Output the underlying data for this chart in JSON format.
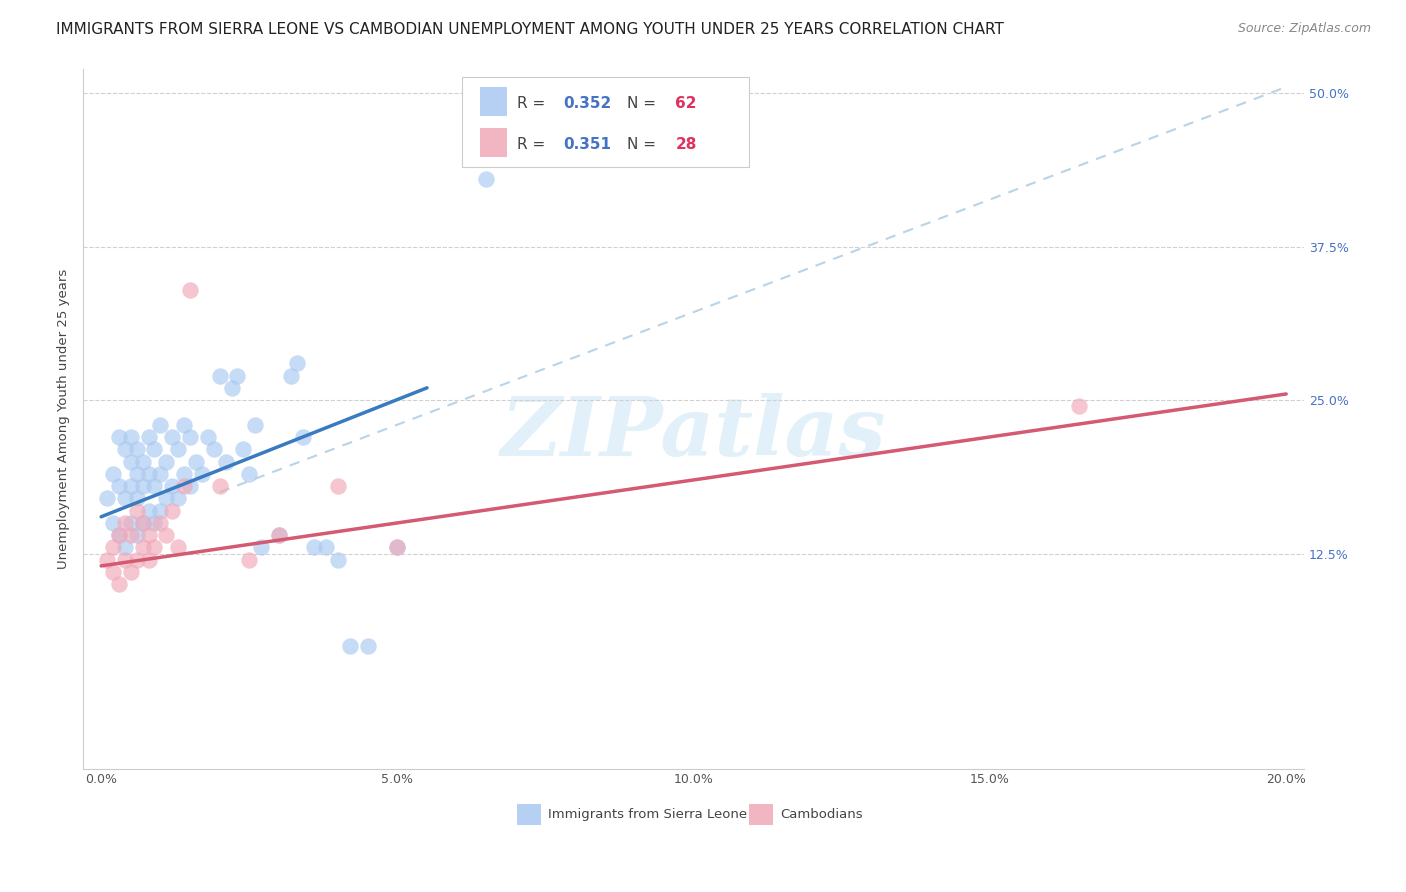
{
  "title": "IMMIGRANTS FROM SIERRA LEONE VS CAMBODIAN UNEMPLOYMENT AMONG YOUTH UNDER 25 YEARS CORRELATION CHART",
  "source": "Source: ZipAtlas.com",
  "ylabel": "Unemployment Among Youth under 25 years",
  "xlim": [
    0.0,
    0.2
  ],
  "ylim": [
    -0.05,
    0.52
  ],
  "sierra_leone_color": "#a8c8f0",
  "cambodian_color": "#f0a8b8",
  "sierra_leone_line_color": "#3a7abf",
  "cambodian_line_color": "#d45a72",
  "dashed_line_color": "#b8d4e8",
  "title_fontsize": 11,
  "source_fontsize": 9,
  "axis_label_fontsize": 9.5,
  "tick_fontsize": 9,
  "legend_fontsize": 11,
  "watermark": "ZIPatlas",
  "sl_scatter_x": [
    0.001,
    0.002,
    0.002,
    0.003,
    0.003,
    0.003,
    0.004,
    0.004,
    0.004,
    0.005,
    0.005,
    0.005,
    0.005,
    0.006,
    0.006,
    0.006,
    0.006,
    0.007,
    0.007,
    0.007,
    0.008,
    0.008,
    0.008,
    0.009,
    0.009,
    0.009,
    0.01,
    0.01,
    0.01,
    0.011,
    0.011,
    0.012,
    0.012,
    0.013,
    0.013,
    0.014,
    0.014,
    0.015,
    0.015,
    0.016,
    0.017,
    0.018,
    0.019,
    0.02,
    0.021,
    0.022,
    0.023,
    0.024,
    0.025,
    0.026,
    0.027,
    0.03,
    0.032,
    0.033,
    0.034,
    0.036,
    0.038,
    0.04,
    0.042,
    0.045,
    0.05,
    0.065
  ],
  "sl_scatter_y": [
    0.17,
    0.15,
    0.19,
    0.14,
    0.18,
    0.22,
    0.13,
    0.17,
    0.21,
    0.15,
    0.18,
    0.2,
    0.22,
    0.14,
    0.17,
    0.19,
    0.21,
    0.15,
    0.18,
    0.2,
    0.16,
    0.19,
    0.22,
    0.15,
    0.18,
    0.21,
    0.16,
    0.19,
    0.23,
    0.17,
    0.2,
    0.18,
    0.22,
    0.17,
    0.21,
    0.19,
    0.23,
    0.18,
    0.22,
    0.2,
    0.19,
    0.22,
    0.21,
    0.27,
    0.2,
    0.26,
    0.27,
    0.21,
    0.19,
    0.23,
    0.13,
    0.14,
    0.27,
    0.28,
    0.22,
    0.13,
    0.13,
    0.12,
    0.05,
    0.05,
    0.13,
    0.43
  ],
  "cam_scatter_x": [
    0.001,
    0.002,
    0.002,
    0.003,
    0.003,
    0.004,
    0.004,
    0.005,
    0.005,
    0.006,
    0.006,
    0.007,
    0.007,
    0.008,
    0.008,
    0.009,
    0.01,
    0.011,
    0.012,
    0.013,
    0.014,
    0.015,
    0.02,
    0.025,
    0.03,
    0.04,
    0.05,
    0.165
  ],
  "cam_scatter_y": [
    0.12,
    0.11,
    0.13,
    0.1,
    0.14,
    0.12,
    0.15,
    0.11,
    0.14,
    0.12,
    0.16,
    0.13,
    0.15,
    0.12,
    0.14,
    0.13,
    0.15,
    0.14,
    0.16,
    0.13,
    0.18,
    0.34,
    0.18,
    0.12,
    0.14,
    0.18,
    0.13,
    0.245
  ],
  "sl_line_x0": 0.0,
  "sl_line_x1": 0.055,
  "sl_line_y0": 0.155,
  "sl_line_y1": 0.26,
  "cam_line_x0": 0.0,
  "cam_line_x1": 0.2,
  "cam_line_y0": 0.115,
  "cam_line_y1": 0.255,
  "dash_line_x0": 0.02,
  "dash_line_x1": 0.2,
  "dash_line_y0": 0.175,
  "dash_line_y1": 0.505
}
